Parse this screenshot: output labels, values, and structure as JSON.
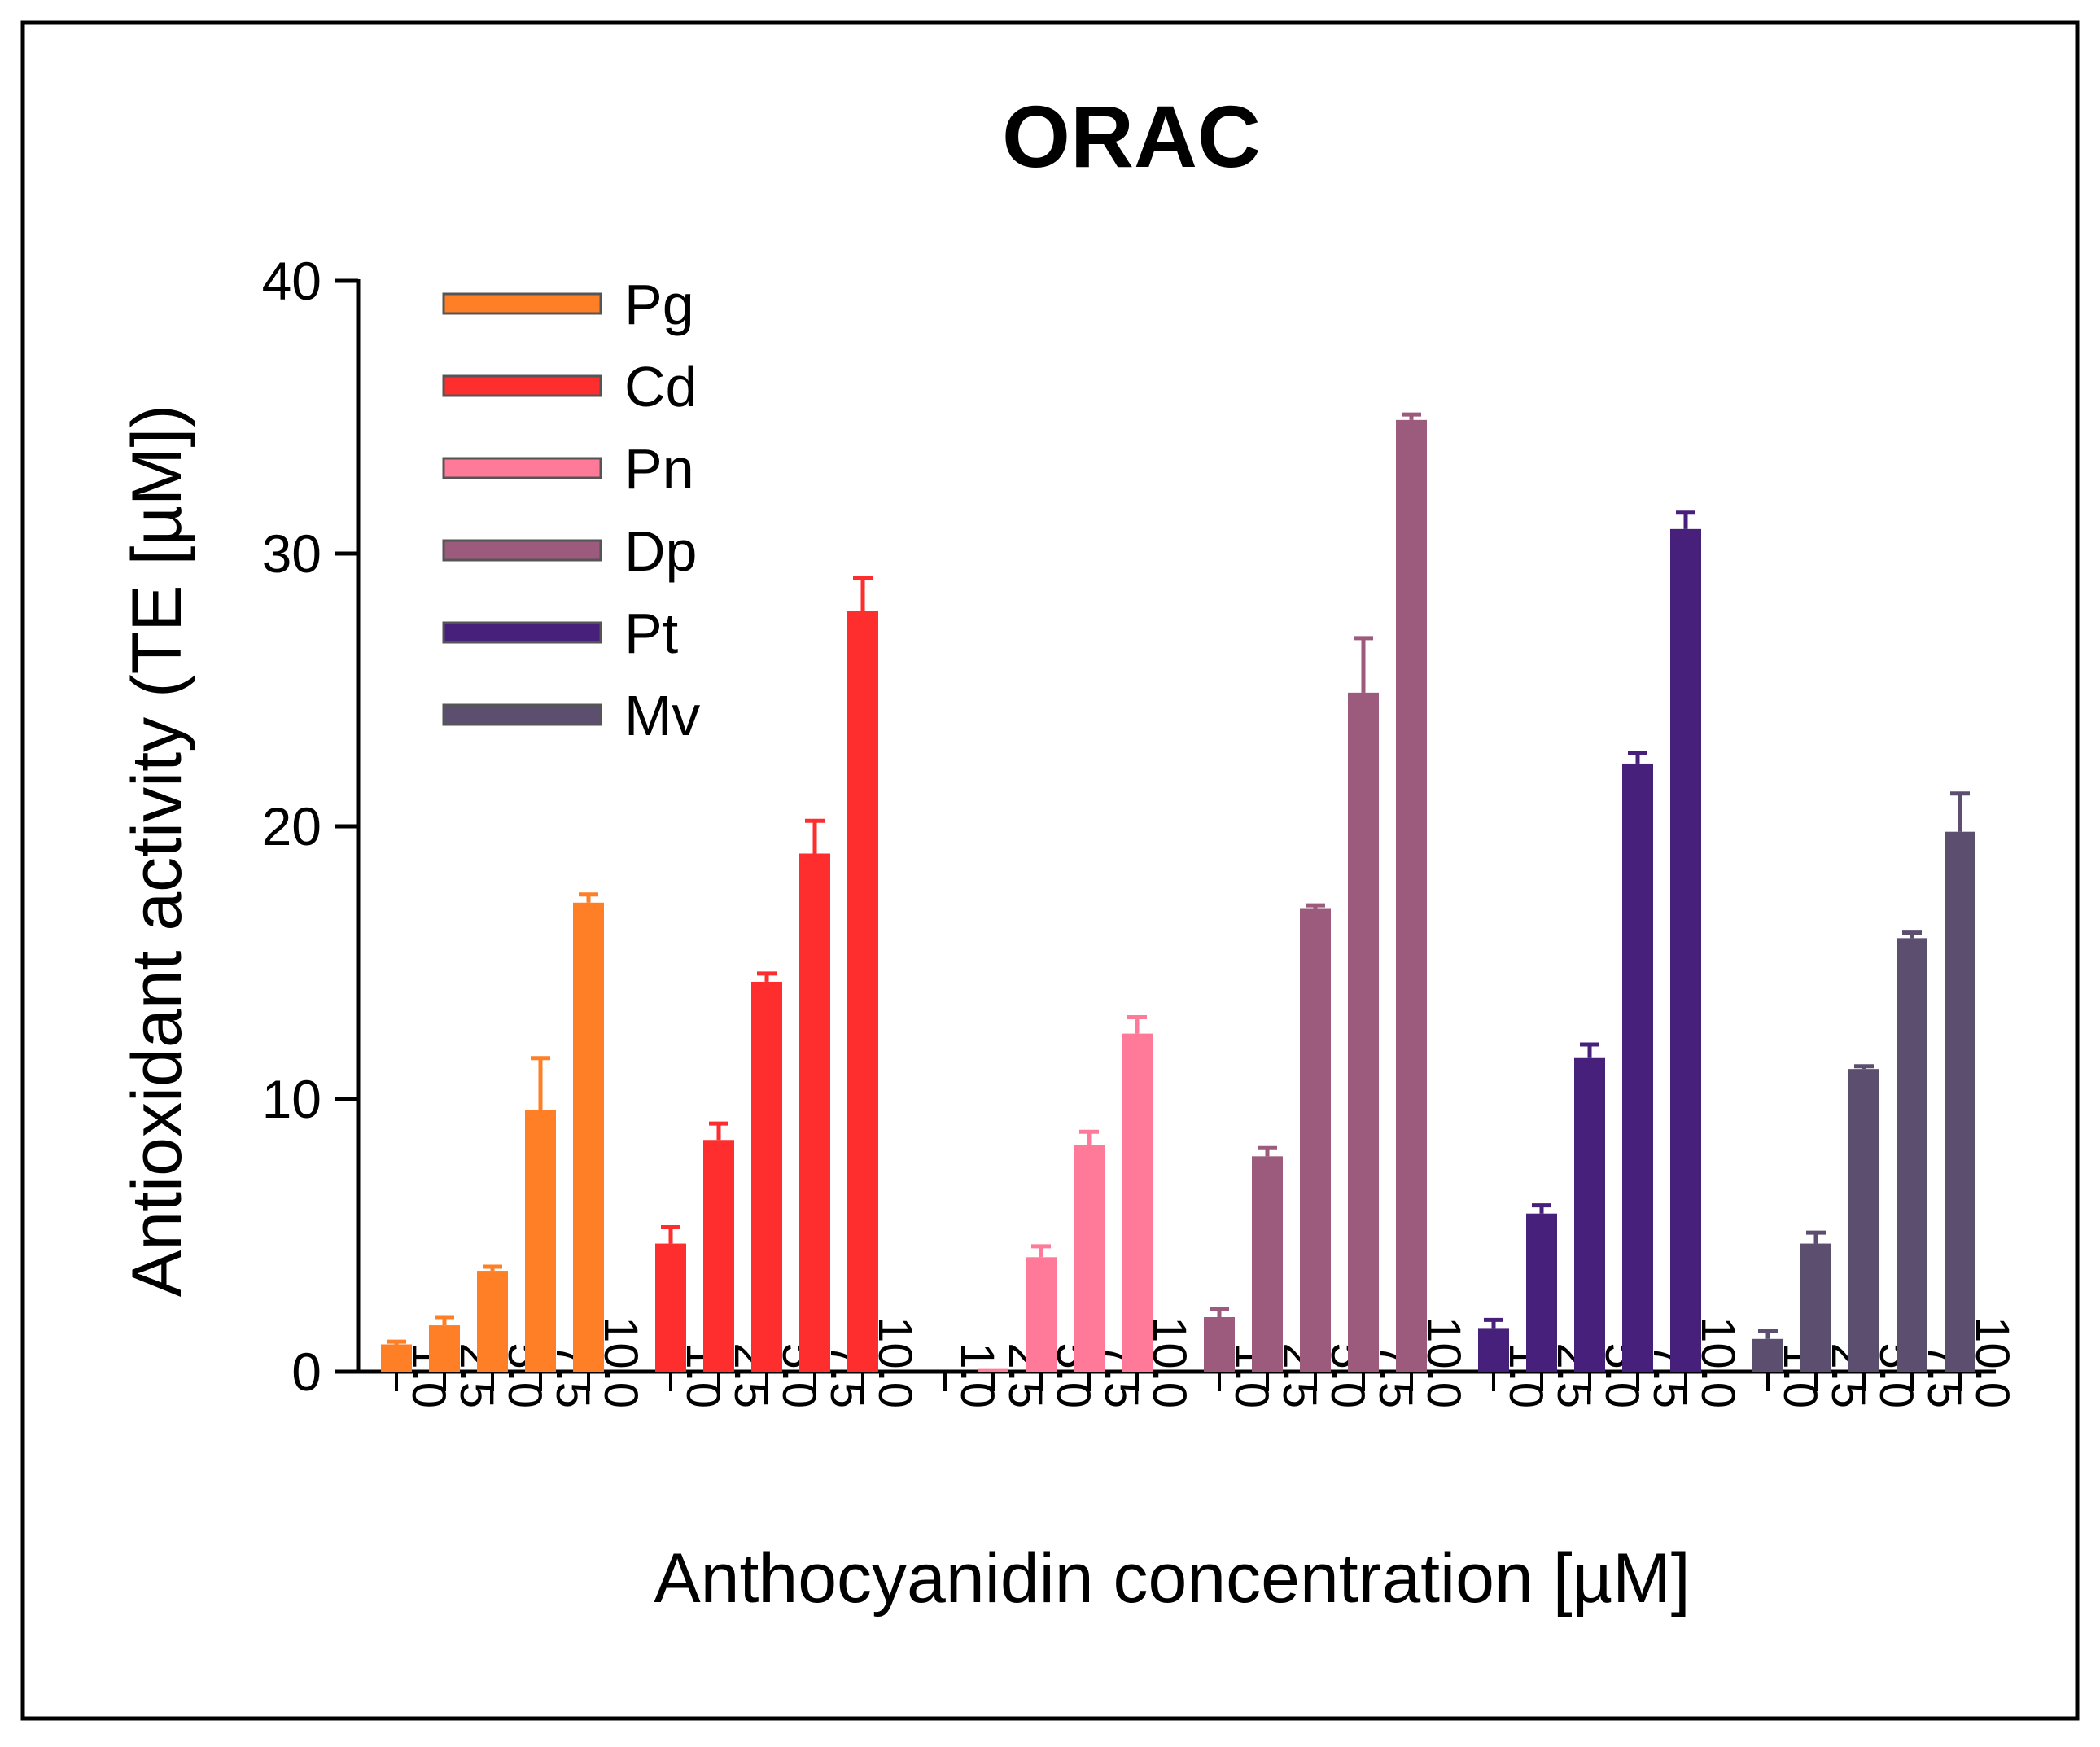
{
  "chart_data": {
    "type": "bar",
    "title": "ORAC",
    "ylabel": "Antioxidant activity (TE [µM])",
    "xlabel": "Anthocyanidin concentration [µM]",
    "ylim": [
      0,
      40
    ],
    "yticks": [
      "0",
      "10",
      "20",
      "30",
      "40"
    ],
    "categories": [
      "1.0",
      "2.5",
      "5.0",
      "7.5",
      "10.0"
    ],
    "legend_position": "top-left",
    "series": [
      {
        "name": "Pg",
        "color": "#FF7F27",
        "values": [
          1.0,
          1.7,
          3.7,
          9.6,
          17.2
        ],
        "errors": [
          0.1,
          0.3,
          0.15,
          1.9,
          0.3
        ]
      },
      {
        "name": "Cd",
        "color": "#FF2E2E",
        "values": [
          4.7,
          8.5,
          14.3,
          19.0,
          27.9
        ],
        "errors": [
          0.6,
          0.6,
          0.3,
          1.2,
          1.2
        ]
      },
      {
        "name": "Pn",
        "color": "#FF7A98",
        "values": [
          0,
          0.1,
          4.2,
          8.3,
          12.4
        ],
        "errors": [
          0,
          0,
          0.4,
          0.5,
          0.6
        ]
      },
      {
        "name": "Dp",
        "color": "#9C5A7C",
        "values": [
          2.0,
          7.9,
          17.0,
          24.9,
          34.9
        ],
        "errors": [
          0.3,
          0.3,
          0.1,
          2.0,
          0.2
        ]
      },
      {
        "name": "Pt",
        "color": "#46207A",
        "values": [
          1.6,
          5.8,
          11.5,
          22.3,
          30.9
        ],
        "errors": [
          0.3,
          0.3,
          0.5,
          0.4,
          0.6
        ]
      },
      {
        "name": "Mv",
        "color": "#5B4E6E",
        "values": [
          1.2,
          4.7,
          11.1,
          15.9,
          19.8
        ],
        "errors": [
          0.3,
          0.4,
          0.1,
          0.2,
          1.4
        ]
      }
    ]
  }
}
